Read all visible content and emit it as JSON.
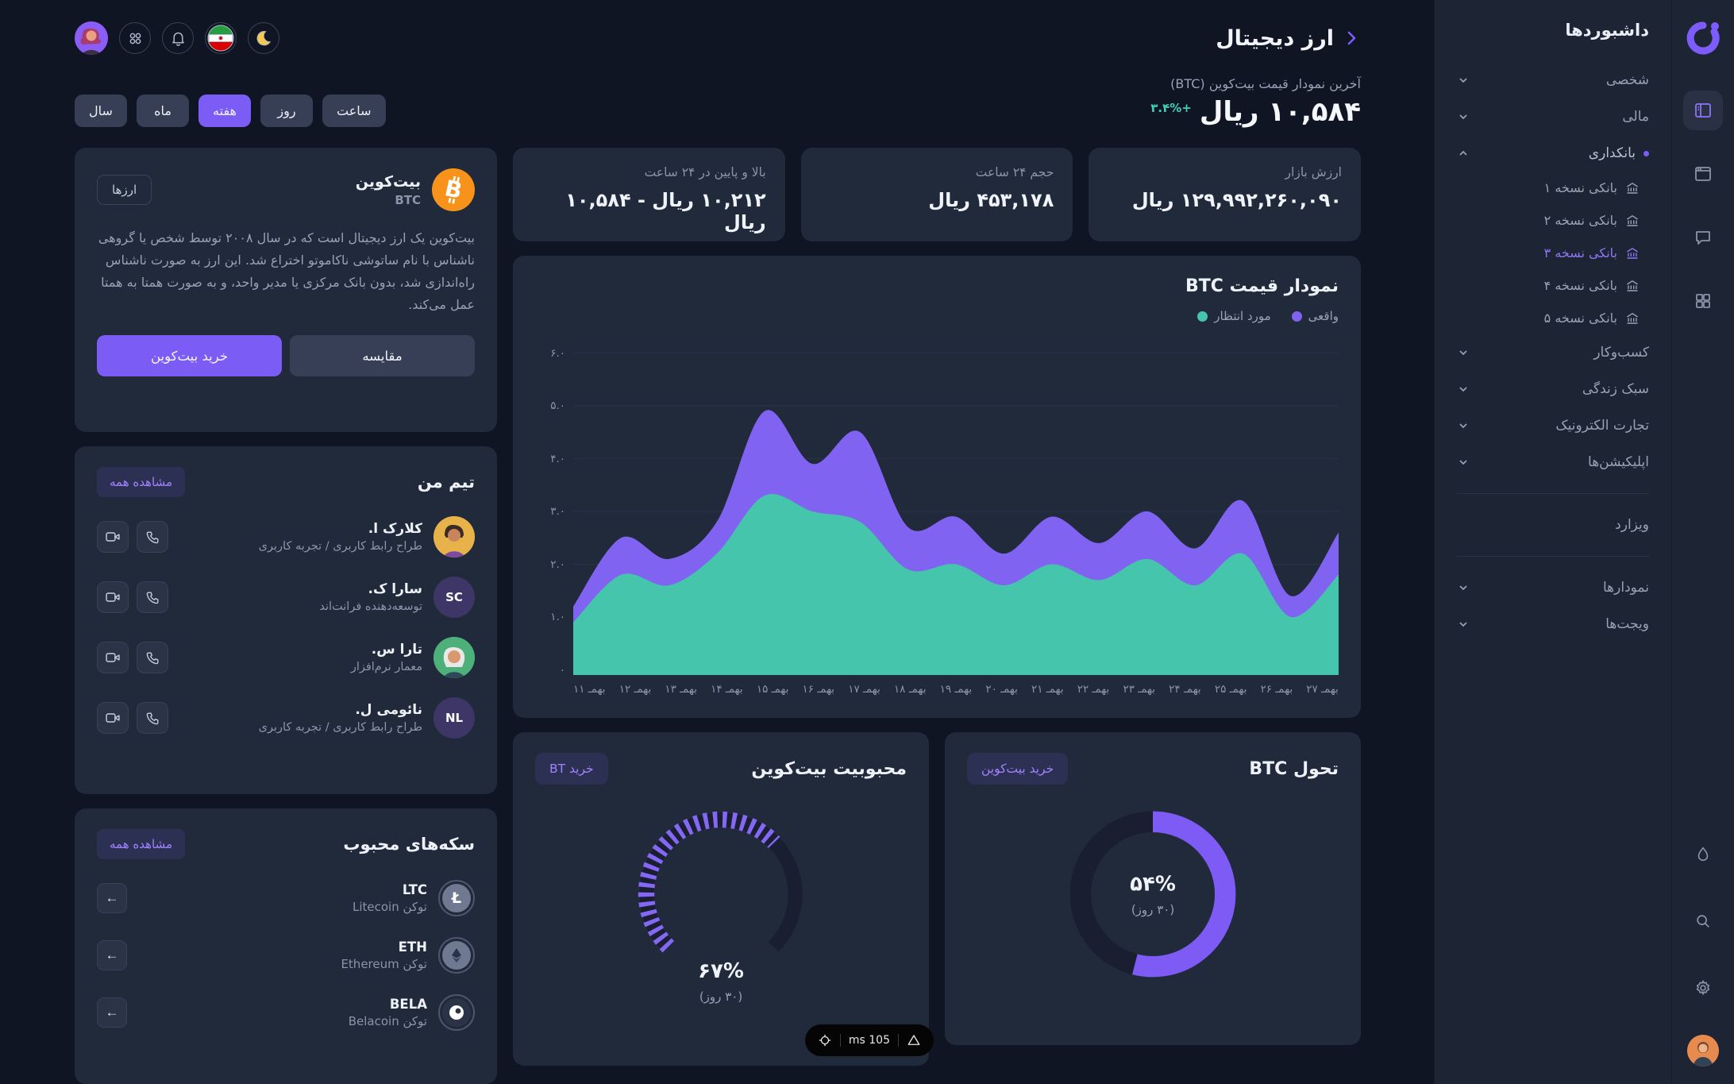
{
  "theme": {
    "accent": "#7b5cf5",
    "teal": "#45c5ab",
    "positive": "#3fd0b9",
    "card_bg": "#212a3b",
    "page_bg": "#0f1522",
    "sidebar_bg": "#1d2535"
  },
  "icons": [
    "logo",
    "layout-panel-icon",
    "window-icon",
    "chat-icon",
    "grid-icon",
    "droplet-icon",
    "search-icon",
    "gear-icon",
    "avatar",
    "moon-icon",
    "flag-iran-icon",
    "bell-icon",
    "apps-icon",
    "bank-icon",
    "chevron-icon",
    "video-icon",
    "phone-icon",
    "arrow-left-icon",
    "target-icon",
    "triangle-icon"
  ],
  "sidebar": {
    "title": "داشبوردها",
    "groups_top": [
      {
        "label": "شخصی"
      },
      {
        "label": "مالی"
      }
    ],
    "banking": {
      "label": "بانکداری",
      "items": [
        "بانکی نسخه ۱",
        "بانکی نسخه ۲",
        "بانکی نسخه ۳",
        "بانکی نسخه ۴",
        "بانکی نسخه ۵"
      ],
      "active_item": "بانکی نسخه ۳"
    },
    "groups_bottom": [
      {
        "label": "کسب‌وکار"
      },
      {
        "label": "سبک زندگی"
      },
      {
        "label": "تجارت الکترونیک"
      },
      {
        "label": "اپلیکیشن‌ها"
      }
    ],
    "wizard": "ویزارد",
    "charts": "نمودارها",
    "widgets": "ویجت‌ها"
  },
  "header": {
    "title": "ارز دیجیتال"
  },
  "price_block": {
    "subtitle": "آخرین نمودار قیمت بیت‌کوین (BTC)",
    "price": "۱۰,۵۸۴ ریال",
    "change": "+۳.۴%"
  },
  "filters": {
    "items": [
      "ساعت",
      "روز",
      "هفته",
      "ماه",
      "سال"
    ],
    "active": "هفته"
  },
  "stats": [
    {
      "label": "ارزش بازار",
      "value": "۱۲۹,۹۹۲,۲۶۰,۰۹۰ ریال"
    },
    {
      "label": "حجم ۲۴ ساعت",
      "value": "۴۵۳,۱۷۸ ریال"
    },
    {
      "label": "بالا و پایین در ۲۴ ساعت",
      "value": "۱۰,۲۱۲ ریال - ۱۰,۵۸۴ ریال"
    }
  ],
  "bitcoin_card": {
    "badge": "ارزها",
    "name": "بیت‌کوین",
    "symbol": "BTC",
    "description": "بیت‌کوین یک ارز دیجیتال است که در سال ۲۰۰۸ توسط شخص یا گروهی ناشناس با نام ساتوشی ناکاموتو اختراع شد. این ارز به صورت ناشناس راه‌اندازی شد، بدون بانک مرکزی یا مدیر واحد، و به صورت همتا به همتا عمل می‌کند.",
    "compare": "مقایسه",
    "buy": "خرید بیت‌کوین"
  },
  "chart_data": {
    "type": "area",
    "title": "نمودار قیمت BTC",
    "legend": [
      {
        "label": "واقعی",
        "color": "#8163f1"
      },
      {
        "label": "مورد انتظار",
        "color": "#45c5ab"
      }
    ],
    "x_labels": [
      "بهمـ ۱۱",
      "بهمـ ۱۲",
      "بهمـ ۱۳",
      "بهمـ ۱۴",
      "بهمـ ۱۵",
      "بهمـ ۱۶",
      "بهمـ ۱۷",
      "بهمـ ۱۸",
      "بهمـ ۱۹",
      "بهمـ ۲۰",
      "بهمـ ۲۱",
      "بهمـ ۲۲",
      "بهمـ ۲۳",
      "بهمـ ۲۴",
      "بهمـ ۲۵",
      "بهمـ ۲۶",
      "بهمـ ۲۷"
    ],
    "y_ticks": [
      "۶.۰",
      "۵.۰",
      "۴.۰",
      "۳.۰",
      "۲.۰",
      "۱.۰",
      "۰"
    ],
    "ylim": [
      0,
      6.4
    ],
    "grid": true,
    "legend_position": "top-right",
    "series": [
      {
        "name": "واقعی",
        "color": "#8163f1",
        "values": [
          1.2,
          2.5,
          2.1,
          2.8,
          4.9,
          3.9,
          4.5,
          2.7,
          2.9,
          2.2,
          2.9,
          2.4,
          3.0,
          2.3,
          3.2,
          1.4,
          2.6
        ]
      },
      {
        "name": "مورد انتظار",
        "color": "#45c5ab",
        "values": [
          0.9,
          1.8,
          1.6,
          2.2,
          3.3,
          3.0,
          2.8,
          1.9,
          2.0,
          1.6,
          2.0,
          1.7,
          2.1,
          1.6,
          2.2,
          1.0,
          1.8
        ]
      }
    ]
  },
  "team": {
    "title": "تیم من",
    "view_all": "مشاهده همه",
    "members": [
      {
        "name": "کلارک ا.",
        "role": "طراح رابط کاربری / تجربه کاربری",
        "avatar": "photo",
        "avatar_bg": "#e7b24a",
        "hair": "#3a2c23"
      },
      {
        "name": "سارا ک.",
        "role": "توسعه‌دهنده فرانت‌اند",
        "avatar": "initials",
        "initials": "SC",
        "avatar_bg": "#3d3666"
      },
      {
        "name": "تارا س.",
        "role": "معمار نرم‌افزار",
        "avatar": "photo",
        "avatar_bg": "#4db07b",
        "hair": "#e8e8e8"
      },
      {
        "name": "نائومی ل.",
        "role": "طراح رابط کاربری / تجربه کاربری",
        "avatar": "initials",
        "initials": "NL",
        "avatar_bg": "#3d3666"
      }
    ]
  },
  "coins": {
    "title": "سکه‌های محبوب",
    "view_all": "مشاهده همه",
    "items": [
      {
        "symbol": "LTC",
        "name": "توکن Litecoin",
        "glyph": "litecoin-icon"
      },
      {
        "symbol": "ETH",
        "name": "توکن Ethereum",
        "glyph": "ethereum-icon"
      },
      {
        "symbol": "BELA",
        "name": "توکن Belacoin",
        "glyph": "belacoin-icon"
      }
    ]
  },
  "gauges": {
    "evolution": {
      "title": "تحول BTC",
      "buy": "خرید بیت‌کوین",
      "percent": 54,
      "percent_label": "۵۴%",
      "period": "(۳۰ روز)"
    },
    "popularity": {
      "title": "محبوبیت بیت‌کوین",
      "buy": "خرید BT",
      "percent": 67,
      "percent_label": "۶۷%",
      "period": "(۳۰ روز)"
    }
  },
  "status_pill": {
    "unit": "ms",
    "value": "105"
  }
}
